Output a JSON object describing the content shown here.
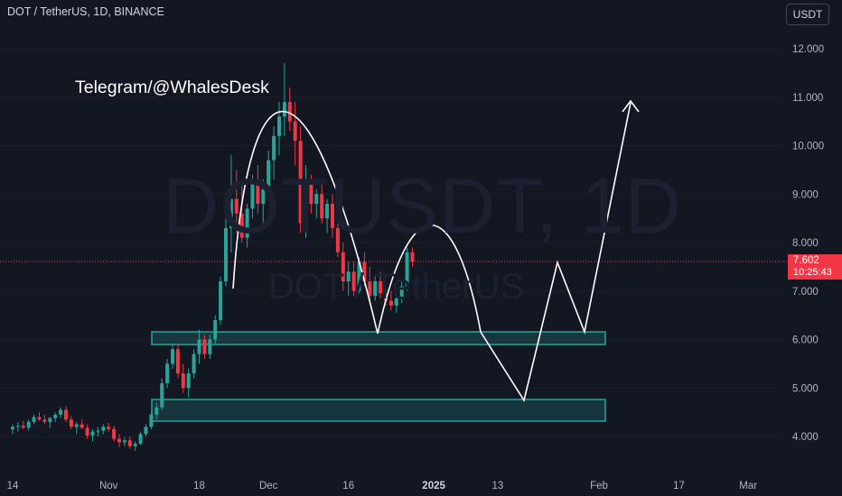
{
  "header": {
    "symbol_title": "DOT / TetherUS, 1D, BINANCE",
    "currency_button": "USDT"
  },
  "watermark": {
    "main": "DOTUSDT, 1D",
    "sub": "DOT / TetherUS"
  },
  "annotation_text": "Telegram/@WhalesDesk",
  "last_price": {
    "price": "7.602",
    "countdown": "10:25:43"
  },
  "colors": {
    "background": "#131722",
    "up": "#26a69a",
    "down": "#f23645",
    "zone": "#26a69a",
    "drawing": "#ffffff",
    "axis_text": "#b2b5be"
  },
  "chart_data": {
    "type": "candlestick",
    "symbol": "DOTUSDT",
    "timeframe": "1D",
    "exchange": "BINANCE",
    "ylim": [
      3.5,
      12.5
    ],
    "y_ticks": [
      "12.000",
      "11.000",
      "10.000",
      "9.000",
      "8.000",
      "7.000",
      "6.000",
      "5.000",
      "4.000"
    ],
    "y_tick_values": [
      12,
      11,
      10,
      9,
      8,
      7,
      6,
      5,
      4
    ],
    "x_ticks": [
      {
        "label": "14",
        "day": 0
      },
      {
        "label": "Nov",
        "day": 18
      },
      {
        "label": "18",
        "day": 35
      },
      {
        "label": "Dec",
        "day": 48
      },
      {
        "label": "16",
        "day": 63
      },
      {
        "label": "2025",
        "day": 79
      },
      {
        "label": "13",
        "day": 91
      },
      {
        "label": "Feb",
        "day": 110
      },
      {
        "label": "17",
        "day": 125
      },
      {
        "label": "Mar",
        "day": 138
      }
    ],
    "candles": [
      [
        4.15,
        4.25,
        4.05,
        4.2
      ],
      [
        4.2,
        4.3,
        4.1,
        4.22
      ],
      [
        4.22,
        4.32,
        4.15,
        4.18
      ],
      [
        4.18,
        4.35,
        4.12,
        4.3
      ],
      [
        4.3,
        4.45,
        4.25,
        4.4
      ],
      [
        4.4,
        4.5,
        4.32,
        4.35
      ],
      [
        4.35,
        4.45,
        4.25,
        4.3
      ],
      [
        4.3,
        4.4,
        4.18,
        4.38
      ],
      [
        4.38,
        4.5,
        4.3,
        4.45
      ],
      [
        4.45,
        4.6,
        4.38,
        4.55
      ],
      [
        4.55,
        4.62,
        4.3,
        4.35
      ],
      [
        4.35,
        4.42,
        4.15,
        4.2
      ],
      [
        4.2,
        4.3,
        4.05,
        4.25
      ],
      [
        4.25,
        4.35,
        4.15,
        4.18
      ],
      [
        4.18,
        4.25,
        3.95,
        4.02
      ],
      [
        4.02,
        4.15,
        3.9,
        4.1
      ],
      [
        4.1,
        4.2,
        4.0,
        4.12
      ],
      [
        4.12,
        4.25,
        4.05,
        4.2
      ],
      [
        4.2,
        4.28,
        4.1,
        4.15
      ],
      [
        4.15,
        4.22,
        3.9,
        3.95
      ],
      [
        3.95,
        4.05,
        3.78,
        3.88
      ],
      [
        3.88,
        3.98,
        3.8,
        3.92
      ],
      [
        3.92,
        4.0,
        3.75,
        3.8
      ],
      [
        3.8,
        3.9,
        3.7,
        3.85
      ],
      [
        3.85,
        4.1,
        3.82,
        4.05
      ],
      [
        4.05,
        4.25,
        4.0,
        4.2
      ],
      [
        4.2,
        4.5,
        4.15,
        4.45
      ],
      [
        4.45,
        4.7,
        4.35,
        4.6
      ],
      [
        4.6,
        5.2,
        4.55,
        5.1
      ],
      [
        5.1,
        5.6,
        5.0,
        5.5
      ],
      [
        5.5,
        5.9,
        5.4,
        5.8
      ],
      [
        5.8,
        5.9,
        5.2,
        5.3
      ],
      [
        5.3,
        5.5,
        4.9,
        5.0
      ],
      [
        5.0,
        5.4,
        4.8,
        5.3
      ],
      [
        5.3,
        5.8,
        5.2,
        5.7
      ],
      [
        5.7,
        6.2,
        5.5,
        6.0
      ],
      [
        6.0,
        6.1,
        5.6,
        5.7
      ],
      [
        5.7,
        6.1,
        5.6,
        6.0
      ],
      [
        6.0,
        6.5,
        5.9,
        6.4
      ],
      [
        6.4,
        7.3,
        6.3,
        7.2
      ],
      [
        7.2,
        8.5,
        7.1,
        8.3
      ],
      [
        8.3,
        9.8,
        7.8,
        8.9
      ],
      [
        8.9,
        9.5,
        8.2,
        8.6
      ],
      [
        8.6,
        9.2,
        8.0,
        8.1
      ],
      [
        8.1,
        8.8,
        7.9,
        8.7
      ],
      [
        8.7,
        9.4,
        8.5,
        9.2
      ],
      [
        9.2,
        9.6,
        8.6,
        8.8
      ],
      [
        8.8,
        9.3,
        8.4,
        9.1
      ],
      [
        9.1,
        9.9,
        8.9,
        9.7
      ],
      [
        9.7,
        10.4,
        9.3,
        10.2
      ],
      [
        10.2,
        10.9,
        9.8,
        10.6
      ],
      [
        10.6,
        11.7,
        10.2,
        10.9
      ],
      [
        10.9,
        11.2,
        10.3,
        10.5
      ],
      [
        10.5,
        10.9,
        9.6,
        10.1
      ],
      [
        10.1,
        10.4,
        8.2,
        8.4
      ],
      [
        8.4,
        9.6,
        8.1,
        9.2
      ],
      [
        9.2,
        9.4,
        8.6,
        8.8
      ],
      [
        8.8,
        9.1,
        8.5,
        9.0
      ],
      [
        9.0,
        9.2,
        8.4,
        8.5
      ],
      [
        8.5,
        8.9,
        8.2,
        8.8
      ],
      [
        8.8,
        9.0,
        8.1,
        8.3
      ],
      [
        8.3,
        8.5,
        7.7,
        7.8
      ],
      [
        7.8,
        8.0,
        7.0,
        7.2
      ],
      [
        7.2,
        7.6,
        6.9,
        7.4
      ],
      [
        7.4,
        7.6,
        6.9,
        7.0
      ],
      [
        7.0,
        7.7,
        6.95,
        7.6
      ],
      [
        7.6,
        7.8,
        7.1,
        7.2
      ],
      [
        7.2,
        7.5,
        6.8,
        6.9
      ],
      [
        6.9,
        7.3,
        6.8,
        7.2
      ],
      [
        7.2,
        7.4,
        6.85,
        6.95
      ],
      [
        6.95,
        7.1,
        6.7,
        6.8
      ],
      [
        6.8,
        7.0,
        6.6,
        6.7
      ],
      [
        6.7,
        6.9,
        6.55,
        6.85
      ],
      [
        6.85,
        7.2,
        6.75,
        7.1
      ],
      [
        7.1,
        7.9,
        7.0,
        7.8
      ],
      [
        7.8,
        7.9,
        7.5,
        7.602
      ]
    ]
  }
}
